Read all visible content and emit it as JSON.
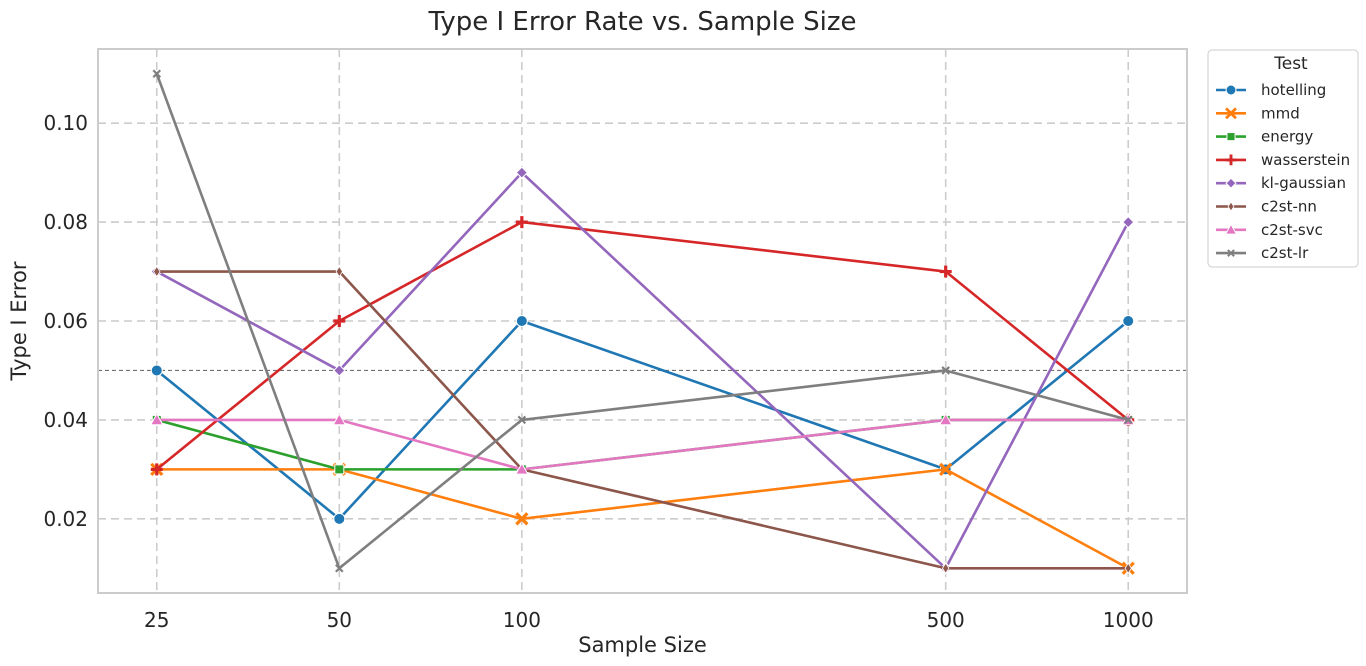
{
  "chart_data": {
    "type": "line",
    "title": "Type I Error Rate vs. Sample Size",
    "xlabel": "Sample Size",
    "ylabel": "Type I Error",
    "x": [
      25,
      50,
      100,
      500,
      1000
    ],
    "x_scale": "log",
    "xlim": [
      20,
      1250
    ],
    "ylim": [
      0.005,
      0.115
    ],
    "yticks": [
      "0.02",
      "0.04",
      "0.06",
      "0.08",
      "0.10"
    ],
    "xticks": [
      "25",
      "50",
      "100",
      "500",
      "1000"
    ],
    "reference_line": 0.05,
    "grid": true,
    "legend": {
      "title": "Test",
      "position": "outside-top-right"
    },
    "series": [
      {
        "name": "hotelling",
        "color": "#1f77b4",
        "marker": "circle",
        "values": [
          0.05,
          0.02,
          0.06,
          0.03,
          0.06
        ]
      },
      {
        "name": "mmd",
        "color": "#ff7f0e",
        "marker": "x",
        "values": [
          0.03,
          0.03,
          0.02,
          0.03,
          0.01
        ]
      },
      {
        "name": "energy",
        "color": "#2ca02c",
        "marker": "square",
        "values": [
          0.04,
          0.03,
          0.03,
          0.04,
          0.04
        ]
      },
      {
        "name": "wasserstein",
        "color": "#d62728",
        "marker": "plus",
        "values": [
          0.03,
          0.06,
          0.08,
          0.07,
          0.04
        ]
      },
      {
        "name": "kl-gaussian",
        "color": "#9467bd",
        "marker": "diamond",
        "values": [
          0.07,
          0.05,
          0.09,
          0.01,
          0.08
        ]
      },
      {
        "name": "c2st-nn",
        "color": "#8c564b",
        "marker": "thin-diamond",
        "values": [
          0.07,
          0.07,
          0.03,
          0.01,
          0.01
        ]
      },
      {
        "name": "c2st-svc",
        "color": "#e377c2",
        "marker": "triangle",
        "values": [
          0.04,
          0.04,
          0.03,
          0.04,
          0.04
        ]
      },
      {
        "name": "c2st-lr",
        "color": "#7f7f7f",
        "marker": "x-small",
        "values": [
          0.11,
          0.01,
          0.04,
          0.05,
          0.04
        ]
      }
    ]
  }
}
